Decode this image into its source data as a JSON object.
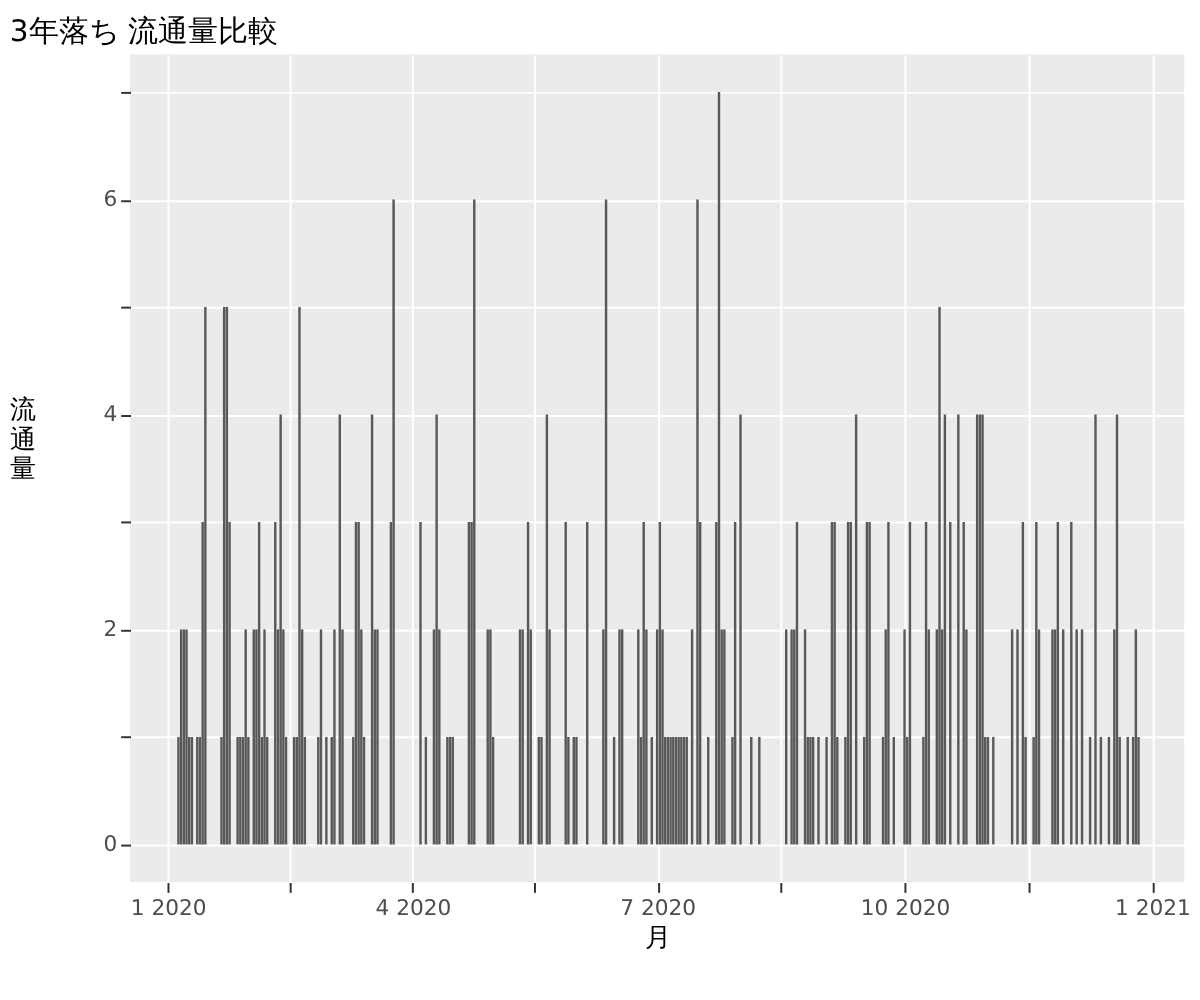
{
  "chart_data": {
    "type": "bar",
    "title": "3年落ち 流通量比較",
    "xlabel": "月",
    "ylabel": "流通量",
    "color": "#595959",
    "x": [
      "2020-01-05",
      "2020-01-06",
      "2020-01-07",
      "2020-01-08",
      "2020-01-09",
      "2020-01-10",
      "2020-01-12",
      "2020-01-13",
      "2020-01-14",
      "2020-01-15",
      "2020-01-21",
      "2020-01-22",
      "2020-01-23",
      "2020-01-24",
      "2020-01-27",
      "2020-01-28",
      "2020-01-29",
      "2020-01-30",
      "2020-01-31",
      "2020-02-02",
      "2020-02-03",
      "2020-02-04",
      "2020-02-05",
      "2020-02-06",
      "2020-02-07",
      "2020-02-10",
      "2020-02-11",
      "2020-02-12",
      "2020-02-13",
      "2020-02-14",
      "2020-02-17",
      "2020-02-18",
      "2020-02-19",
      "2020-02-20",
      "2020-02-21",
      "2020-02-26",
      "2020-02-27",
      "2020-02-29",
      "2020-03-02",
      "2020-03-03",
      "2020-03-05",
      "2020-03-06",
      "2020-03-10",
      "2020-03-11",
      "2020-03-12",
      "2020-03-13",
      "2020-03-14",
      "2020-03-17",
      "2020-03-18",
      "2020-03-19",
      "2020-03-24",
      "2020-03-25",
      "2020-04-04",
      "2020-04-06",
      "2020-04-09",
      "2020-04-10",
      "2020-04-11",
      "2020-04-14",
      "2020-04-15",
      "2020-04-16",
      "2020-04-22",
      "2020-04-23",
      "2020-04-24",
      "2020-04-29",
      "2020-04-30",
      "2020-05-01",
      "2020-05-11",
      "2020-05-12",
      "2020-05-14",
      "2020-05-15",
      "2020-05-18",
      "2020-05-19",
      "2020-05-21",
      "2020-05-22",
      "2020-05-28",
      "2020-05-29",
      "2020-05-31",
      "2020-06-01",
      "2020-06-05",
      "2020-06-11",
      "2020-06-12",
      "2020-06-15",
      "2020-06-17",
      "2020-06-18",
      "2020-06-24",
      "2020-06-25",
      "2020-06-26",
      "2020-06-27",
      "2020-06-29",
      "2020-07-01",
      "2020-07-02",
      "2020-07-03",
      "2020-07-04",
      "2020-07-05",
      "2020-07-06",
      "2020-07-07",
      "2020-07-08",
      "2020-07-09",
      "2020-07-10",
      "2020-07-11",
      "2020-07-12",
      "2020-07-14",
      "2020-07-16",
      "2020-07-17",
      "2020-07-20",
      "2020-07-23",
      "2020-07-24",
      "2020-07-25",
      "2020-07-26",
      "2020-07-29",
      "2020-07-30",
      "2020-08-01",
      "2020-08-05",
      "2020-08-08",
      "2020-08-18",
      "2020-08-20",
      "2020-08-21",
      "2020-08-22",
      "2020-08-25",
      "2020-08-26",
      "2020-08-27",
      "2020-08-28",
      "2020-08-30",
      "2020-09-02",
      "2020-09-04",
      "2020-09-05",
      "2020-09-06",
      "2020-09-09",
      "2020-09-10",
      "2020-09-11",
      "2020-09-13",
      "2020-09-16",
      "2020-09-17",
      "2020-09-18",
      "2020-09-23",
      "2020-09-24",
      "2020-09-25",
      "2020-09-27",
      "2020-10-01",
      "2020-10-02",
      "2020-10-03",
      "2020-10-08",
      "2020-10-09",
      "2020-10-10",
      "2020-10-13",
      "2020-10-14",
      "2020-10-15",
      "2020-10-16",
      "2020-10-18",
      "2020-10-21",
      "2020-10-23",
      "2020-10-24",
      "2020-10-28",
      "2020-10-29",
      "2020-10-30",
      "2020-10-31",
      "2020-11-01",
      "2020-11-03",
      "2020-11-10",
      "2020-11-12",
      "2020-11-14",
      "2020-11-15",
      "2020-11-18",
      "2020-11-19",
      "2020-11-20",
      "2020-11-25",
      "2020-11-26",
      "2020-11-27",
      "2020-11-29",
      "2020-12-02",
      "2020-12-04",
      "2020-12-06",
      "2020-12-09",
      "2020-12-11",
      "2020-12-13",
      "2020-12-16",
      "2020-12-18",
      "2020-12-19",
      "2020-12-20",
      "2020-12-23",
      "2020-12-25",
      "2020-12-26",
      "2020-12-27"
    ],
    "values": [
      1,
      2,
      2,
      2,
      1,
      1,
      1,
      1,
      3,
      5,
      1,
      5,
      5,
      3,
      1,
      1,
      1,
      2,
      1,
      2,
      2,
      3,
      1,
      2,
      1,
      3,
      2,
      4,
      2,
      1,
      1,
      1,
      5,
      2,
      1,
      1,
      2,
      1,
      1,
      2,
      4,
      2,
      1,
      3,
      3,
      2,
      1,
      4,
      2,
      2,
      3,
      6,
      3,
      1,
      2,
      4,
      2,
      1,
      1,
      1,
      3,
      3,
      6,
      2,
      2,
      1,
      2,
      2,
      3,
      2,
      1,
      1,
      4,
      2,
      3,
      1,
      1,
      1,
      3,
      2,
      6,
      1,
      2,
      2,
      2,
      1,
      3,
      2,
      1,
      2,
      3,
      2,
      1,
      1,
      1,
      1,
      1,
      1,
      1,
      1,
      1,
      2,
      6,
      3,
      1,
      3,
      7,
      2,
      2,
      1,
      3,
      4,
      1,
      1,
      2,
      2,
      2,
      3,
      2,
      1,
      1,
      1,
      1,
      1,
      3,
      3,
      1,
      1,
      3,
      3,
      4,
      1,
      3,
      3,
      1,
      2,
      3,
      1,
      2,
      1,
      3,
      1,
      3,
      2,
      2,
      5,
      2,
      4,
      3,
      4,
      3,
      2,
      4,
      4,
      4,
      1,
      1,
      1,
      2,
      2,
      3,
      1,
      1,
      3,
      2,
      2,
      2,
      3,
      2,
      3,
      2,
      2,
      1,
      4,
      1,
      1,
      2,
      4,
      1,
      1,
      1,
      2,
      1
    ],
    "xlim": [
      "2019-12-18",
      "2021-01-13"
    ],
    "xticks": [
      {
        "value": "2020-01-01",
        "label": "1 2020"
      },
      {
        "value": "2020-02-15",
        "label": null
      },
      {
        "value": "2020-04-01",
        "label": "4 2020"
      },
      {
        "value": "2020-05-16",
        "label": null
      },
      {
        "value": "2020-07-01",
        "label": "7 2020"
      },
      {
        "value": "2020-08-16",
        "label": null
      },
      {
        "value": "2020-10-01",
        "label": "10 2020"
      },
      {
        "value": "2020-11-16",
        "label": null
      },
      {
        "value": "2021-01-01",
        "label": "1 2021"
      }
    ],
    "ylim": [
      -0.35,
      7.35
    ],
    "yticks": [
      0,
      {
        "value": 1,
        "label": null
      },
      2,
      {
        "value": 3,
        "label": null
      },
      4,
      {
        "value": 5,
        "label": null
      },
      6,
      {
        "value": 7,
        "label": null
      }
    ],
    "grid": true
  }
}
